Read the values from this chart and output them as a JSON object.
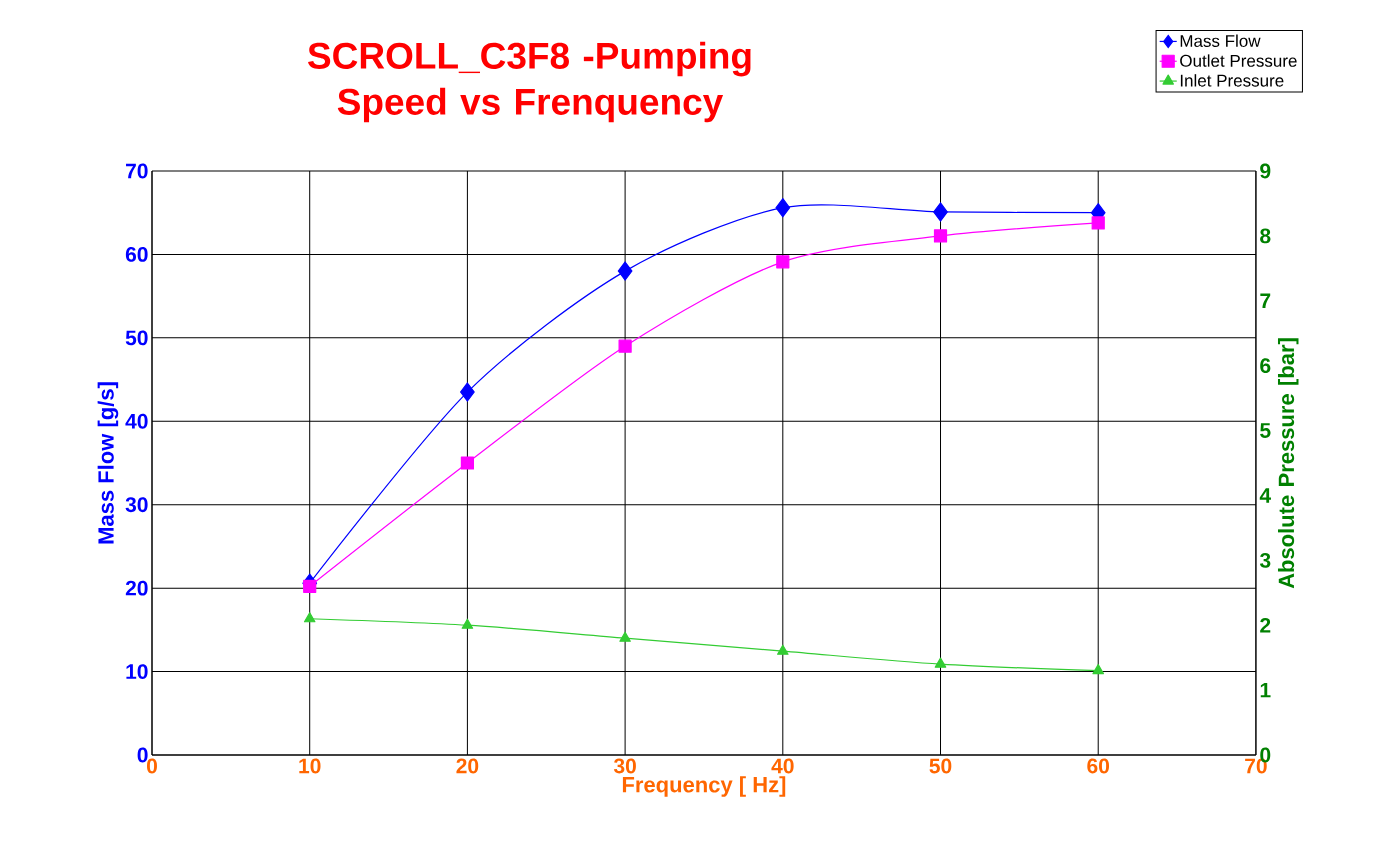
{
  "chart_data": {
    "type": "line",
    "title": "SCROLL_C3F8 -Pumping Speed vs Frenquency",
    "xlabel": "Frequency [ Hz]",
    "ylabel": "Mass Flow [g/s]",
    "y2label": "Absolute Pressure [bar]",
    "x": [
      10,
      20,
      30,
      40,
      50,
      60
    ],
    "series": [
      {
        "name": "Mass Flow",
        "color": "#0000ff",
        "marker": "diamond",
        "values": [
          20.6,
          43.5,
          58,
          65.6,
          65.1,
          65.0
        ]
      },
      {
        "name": "Outlet Pressure",
        "color": "#ff00ff",
        "marker": "square",
        "axis": "y2",
        "values": [
          2.6,
          4.5,
          6.3,
          7.6,
          8.0,
          8.2
        ]
      },
      {
        "name": "Inlet Pressure",
        "color": "#33cc33",
        "marker": "triangle",
        "axis": "y2",
        "values": [
          2.1,
          2.0,
          1.8,
          1.6,
          1.4,
          1.3
        ]
      }
    ],
    "xlim": [
      0,
      70
    ],
    "xticks": [
      0,
      10,
      20,
      30,
      40,
      50,
      60,
      70
    ],
    "ylim": [
      0,
      70
    ],
    "yticks": [
      0,
      10,
      20,
      30,
      40,
      50,
      60,
      70
    ],
    "y2lim": [
      0,
      9
    ],
    "y2ticks": [
      0,
      1,
      2,
      3,
      4,
      5,
      6,
      7,
      8,
      9
    ],
    "grid": true,
    "legend": "top right"
  }
}
